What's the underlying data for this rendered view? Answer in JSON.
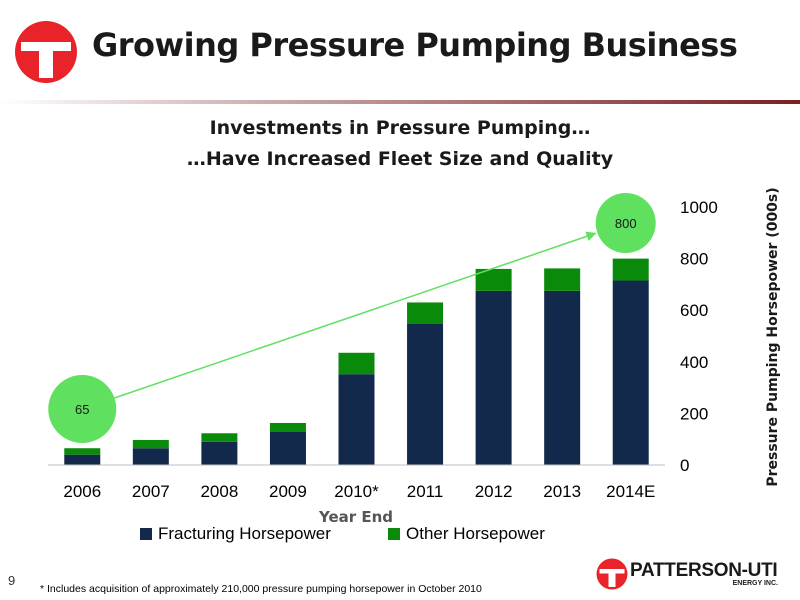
{
  "header": {
    "title": "Growing Pressure Pumping Business",
    "logo_icon": "company-logo-icon"
  },
  "colors": {
    "fracturing": "#13294b",
    "other": "#0a8a0a",
    "bubble": "#5fe05f",
    "arrow": "#5fe05f",
    "logo_red": "#e8242a"
  },
  "chart_data": {
    "type": "bar",
    "stacked": true,
    "title_lines": [
      "Investments in Pressure Pumping…",
      "…Have Increased Fleet Size and Quality"
    ],
    "categories": [
      "2006",
      "2007",
      "2008",
      "2009",
      "2010*",
      "2011",
      "2012",
      "2013",
      "2014E"
    ],
    "series": [
      {
        "name": "Fracturing Horsepower",
        "values": [
          40,
          65,
          90,
          128,
          352,
          548,
          675,
          675,
          715
        ]
      },
      {
        "name": "Other Horsepower",
        "values": [
          25,
          32,
          33,
          35,
          83,
          82,
          85,
          87,
          85
        ]
      }
    ],
    "xlabel": "Year End",
    "ylabel": "Pressure Pumping Horsepower (000s)",
    "ylim": [
      0,
      1000
    ],
    "yticks": [
      0,
      200,
      400,
      600,
      800,
      1000
    ],
    "y_axis_side": "right",
    "legend_position": "bottom",
    "grid": false,
    "annotations": [
      {
        "label": "65",
        "category": "2006",
        "value": 65
      },
      {
        "label": "800",
        "category": "2014E",
        "value": 800
      }
    ],
    "trend_arrow": {
      "from": "2006",
      "to": "2014E"
    }
  },
  "footer": {
    "page_number": "9",
    "footnote": "* Includes acquisition of approximately 210,000 pressure pumping horsepower in October 2010",
    "brand_name": "PATTERSON-UTI",
    "brand_sub": "ENERGY INC.",
    "brand_icon": "patterson-uti-logo-icon"
  }
}
